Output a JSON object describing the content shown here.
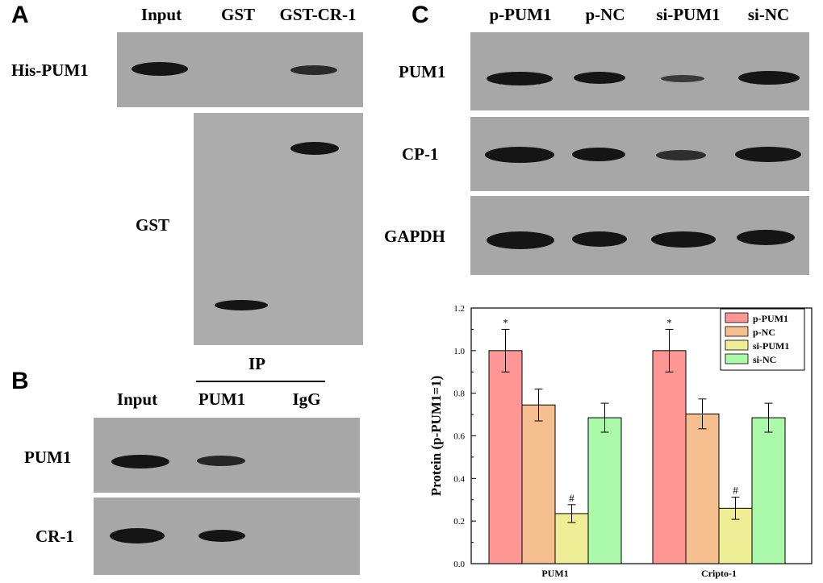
{
  "panel_a": {
    "letter": "A",
    "lanes": [
      "Input",
      "GST",
      "GST-CR-1"
    ],
    "rows": [
      "His-PUM1",
      "GST"
    ]
  },
  "panel_b": {
    "letter": "B",
    "ip_label": "IP",
    "lanes": [
      "Input",
      "PUM1",
      "IgG"
    ],
    "rows": [
      "PUM1",
      "CR-1"
    ]
  },
  "panel_c": {
    "letter": "C",
    "lanes": [
      "p-PUM1",
      "p-NC",
      "si-PUM1",
      "si-NC"
    ],
    "rows": [
      "PUM1",
      "CP-1",
      "GAPDH"
    ]
  },
  "chart_data": {
    "type": "bar",
    "categories": [
      "PUM1",
      "Cripto-1"
    ],
    "series": [
      {
        "name": "p-PUM1",
        "values": [
          1.0,
          1.0
        ],
        "errors": [
          0.1,
          0.1
        ],
        "color": "#fe9696",
        "annotation": "*"
      },
      {
        "name": "p-NC",
        "values": [
          0.745,
          0.703
        ],
        "errors": [
          0.075,
          0.07
        ],
        "color": "#f5be8f",
        "annotation": ""
      },
      {
        "name": "si-PUM1",
        "values": [
          0.235,
          0.26
        ],
        "errors": [
          0.042,
          0.052
        ],
        "color": "#eeee96",
        "annotation": "#"
      },
      {
        "name": "si-NC",
        "values": [
          0.685,
          0.685
        ],
        "errors": [
          0.068,
          0.068
        ],
        "color": "#aafaaa",
        "annotation": ""
      }
    ],
    "title": "",
    "xlabel": "",
    "ylabel": "Protein (p-PUM1=1)",
    "ylim": [
      0,
      1.2
    ],
    "yticks": [
      "0.0",
      "0.2",
      "0.4",
      "0.6",
      "0.8",
      "1.0",
      "1.2"
    ],
    "legend_position": "top-right",
    "grid": false
  }
}
